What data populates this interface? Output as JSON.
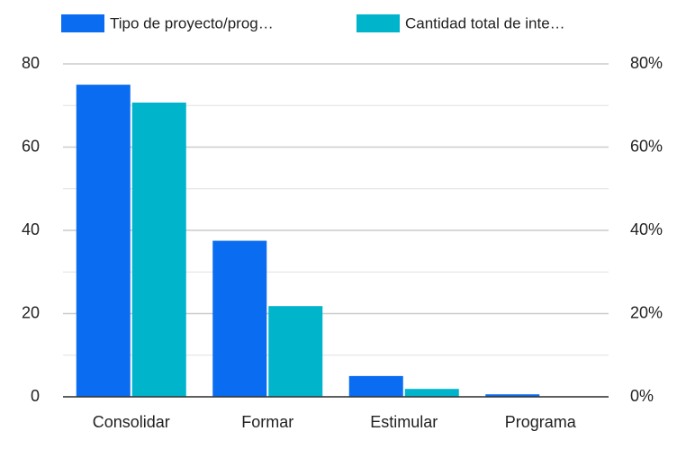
{
  "chart_data": {
    "type": "bar",
    "categories": [
      "Consolidar",
      "Formar",
      "Estimular",
      "Programa"
    ],
    "series": [
      {
        "name": "Tipo de proyecto/prog…",
        "color": "#0a6cf0",
        "values": [
          75,
          37.5,
          5,
          0.6
        ]
      },
      {
        "name": "Cantidad total de inte…",
        "color": "#00b4cc",
        "axis": "y2",
        "values": [
          70.7,
          21.8,
          1.9,
          0
        ]
      }
    ],
    "ylim": [
      0,
      80
    ],
    "yticks": [
      0,
      20,
      40,
      60,
      80
    ],
    "minor_yticks": [
      10,
      30,
      50,
      70
    ],
    "y2lim": [
      0,
      80
    ],
    "y2ticks": [
      {
        "value": 0,
        "label": "0%"
      },
      {
        "value": 20,
        "label": "20%"
      },
      {
        "value": 40,
        "label": "40%"
      },
      {
        "value": 60,
        "label": "60%"
      },
      {
        "value": 80,
        "label": "80%"
      }
    ],
    "grid": true,
    "legend": "top"
  }
}
